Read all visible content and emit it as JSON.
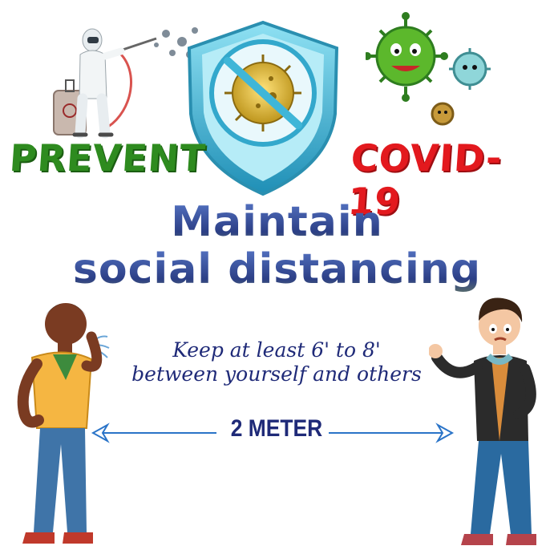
{
  "left_word": "PREVENT",
  "right_word": "COVID-19",
  "headline": {
    "line1": "Maintain",
    "line2": "social distancing"
  },
  "tip": {
    "line1": "Keep at least 6' to 8'",
    "line2": "between yourself and others"
  },
  "distance_label": "2 METER",
  "colors": {
    "prevent_green": "#2e8b1f",
    "covid_red": "#e3191e",
    "headline_blue": "#3a5aa8",
    "text_navy": "#1f2a78",
    "arrow_blue": "#2a74c8",
    "shield_cyan": "#3fb6d8"
  },
  "icons": [
    "disinfecting-worker-icon",
    "shield-virus-icon",
    "virus-cluster-icon",
    "coughing-man-icon",
    "worried-man-icon",
    "double-arrow-icon"
  ]
}
